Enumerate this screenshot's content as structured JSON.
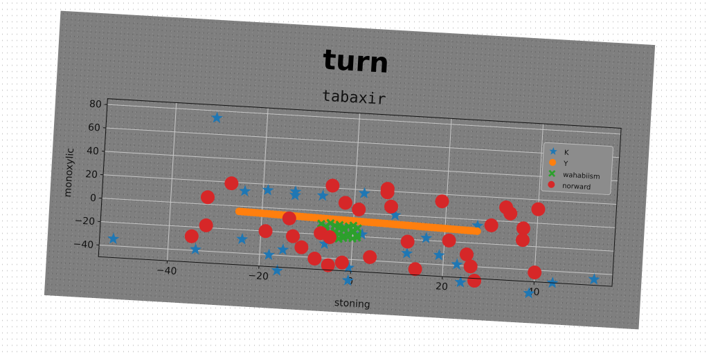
{
  "figure_title": "turn",
  "chart_data": {
    "type": "scatter",
    "title": "tabaxir",
    "xlabel": "stoning",
    "ylabel": "monoxylic",
    "xlim": [
      -55,
      57
    ],
    "ylim": [
      -50,
      85
    ],
    "x_ticks": [
      -40,
      -20,
      0,
      20,
      40
    ],
    "y_ticks": [
      -40,
      -20,
      0,
      20,
      40,
      60,
      80
    ],
    "grid": true,
    "legend_position": "right",
    "series": [
      {
        "name": "K",
        "marker": "star",
        "color": "#1f77b4",
        "points": [
          [
            -31,
            74
          ],
          [
            -24,
            13
          ],
          [
            -19,
            15
          ],
          [
            -13,
            15
          ],
          [
            -13,
            12
          ],
          [
            -7,
            13
          ],
          [
            2,
            17
          ],
          [
            9,
            0
          ],
          [
            -15,
            -35
          ],
          [
            -18,
            -40
          ],
          [
            -16,
            -53
          ],
          [
            -34,
            -39
          ],
          [
            -52,
            -34
          ],
          [
            -24,
            -28
          ],
          [
            -6,
            -28
          ],
          [
            -0.5,
            -47
          ],
          [
            -0.5,
            -58
          ],
          [
            12,
            -32
          ],
          [
            16,
            -18
          ],
          [
            19,
            -32
          ],
          [
            23,
            -39
          ],
          [
            24,
            -54
          ],
          [
            27,
            -5
          ],
          [
            39,
            -60
          ],
          [
            44,
            -50
          ],
          [
            53,
            -45
          ],
          [
            2,
            -18
          ]
        ]
      },
      {
        "name": "Y",
        "marker": "circle",
        "color": "#ff7f0e",
        "x_start": -25,
        "x_end": 27,
        "slope": -0.1,
        "intercept": -7,
        "count": 80
      },
      {
        "name": "wahabiism",
        "marker": "x",
        "color": "#2ca02c",
        "points": [
          [
            -7,
            -11
          ],
          [
            -6,
            -13
          ],
          [
            -5,
            -10
          ],
          [
            -4,
            -12
          ],
          [
            -3,
            -11
          ],
          [
            -2,
            -13
          ],
          [
            -1,
            -12
          ],
          [
            0,
            -11
          ],
          [
            1,
            -13
          ],
          [
            -6,
            -16
          ],
          [
            -5,
            -18
          ],
          [
            -4,
            -17
          ],
          [
            -3,
            -19
          ],
          [
            -2,
            -20
          ],
          [
            -1,
            -18
          ],
          [
            0,
            -17
          ],
          [
            1,
            -19
          ],
          [
            -4,
            -21
          ],
          [
            -3,
            -23
          ],
          [
            -2,
            -22
          ],
          [
            -1,
            -21
          ],
          [
            0,
            -22
          ],
          [
            1,
            -21
          ],
          [
            -2,
            -15
          ],
          [
            0,
            -15
          ],
          [
            -3,
            -14
          ]
        ]
      },
      {
        "name": "norward",
        "marker": "circle",
        "color": "#d62728",
        "points": [
          [
            -27,
            19
          ],
          [
            -32,
            6
          ],
          [
            -32,
            -18
          ],
          [
            -35,
            -28
          ],
          [
            -5,
            22
          ],
          [
            -2,
            8
          ],
          [
            1,
            3
          ],
          [
            7,
            22
          ],
          [
            7,
            19
          ],
          [
            8,
            7
          ],
          [
            19,
            14
          ],
          [
            33,
            12
          ],
          [
            34,
            7
          ],
          [
            40,
            12
          ],
          [
            30,
            -4
          ],
          [
            37,
            -5
          ],
          [
            37,
            -15
          ],
          [
            -19,
            -20
          ],
          [
            -14,
            -8
          ],
          [
            -13,
            -23
          ],
          [
            -11,
            -32
          ],
          [
            -8,
            -41
          ],
          [
            -7,
            -19
          ],
          [
            -5,
            -22
          ],
          [
            -5,
            -46
          ],
          [
            -2,
            -43
          ],
          [
            4,
            -37
          ],
          [
            12,
            -22
          ],
          [
            14,
            -45
          ],
          [
            21,
            -19
          ],
          [
            25,
            -30
          ],
          [
            26,
            -40
          ],
          [
            27,
            -52
          ],
          [
            40,
            -42
          ]
        ]
      }
    ]
  }
}
